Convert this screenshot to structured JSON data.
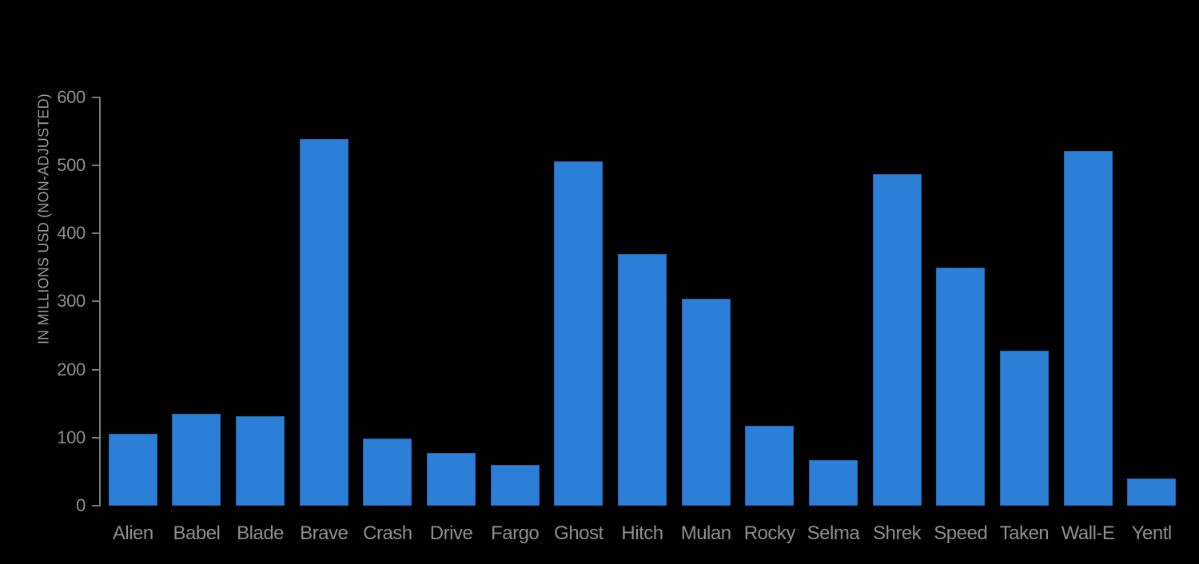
{
  "chart_data": {
    "type": "bar",
    "title": "",
    "xlabel": "",
    "ylabel": "IN MILLIONS USD (NON-ADJUSTED)",
    "categories": [
      "Alien",
      "Babel",
      "Blade",
      "Brave",
      "Crash",
      "Drive",
      "Fargo",
      "Ghost",
      "Hitch",
      "Mulan",
      "Rocky",
      "Selma",
      "Shrek",
      "Speed",
      "Taken",
      "Wall-E",
      "Yentl"
    ],
    "values": [
      106,
      135,
      131,
      538,
      98,
      78,
      60,
      505,
      370,
      304,
      117,
      67,
      487,
      350,
      227,
      521,
      40
    ],
    "ylim": [
      0,
      600
    ],
    "yticks": [
      0,
      100,
      200,
      300,
      400,
      500,
      600
    ],
    "grid": false,
    "legend": "none",
    "colors": {
      "background": "#000000",
      "bar_fill": "#2b7fd6",
      "bar_edge": "#2368b4",
      "axis_line": "#7a7a7a",
      "tick_label": "#8f8f8f",
      "axis_title": "#9a9a9a"
    }
  }
}
